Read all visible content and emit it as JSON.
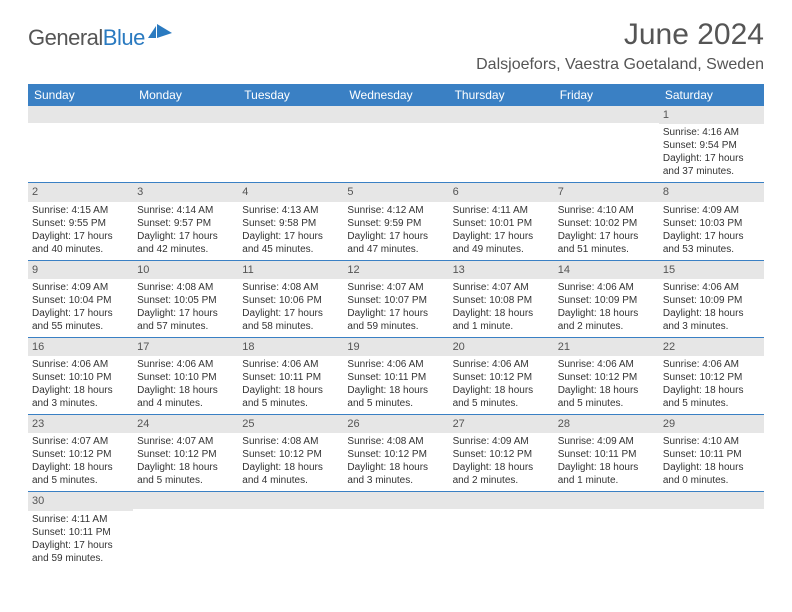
{
  "logo": {
    "part1": "General",
    "part2": "Blue"
  },
  "title": "June 2024",
  "location": "Dalsjoefors, Vaestra Goetaland, Sweden",
  "colors": {
    "header_bg": "#3a80c4",
    "header_text": "#ffffff",
    "daynum_bg": "#e6e6e6",
    "row_border": "#3a80c4",
    "body_text": "#333333",
    "title_text": "#555555",
    "logo_gray": "#555555",
    "logo_blue": "#2a7ac0"
  },
  "weekdays": [
    "Sunday",
    "Monday",
    "Tuesday",
    "Wednesday",
    "Thursday",
    "Friday",
    "Saturday"
  ],
  "weeks": [
    [
      {
        "empty": true
      },
      {
        "empty": true
      },
      {
        "empty": true
      },
      {
        "empty": true
      },
      {
        "empty": true
      },
      {
        "empty": true
      },
      {
        "day": "1",
        "sunrise": "Sunrise: 4:16 AM",
        "sunset": "Sunset: 9:54 PM",
        "daylight": "Daylight: 17 hours and 37 minutes."
      }
    ],
    [
      {
        "day": "2",
        "sunrise": "Sunrise: 4:15 AM",
        "sunset": "Sunset: 9:55 PM",
        "daylight": "Daylight: 17 hours and 40 minutes."
      },
      {
        "day": "3",
        "sunrise": "Sunrise: 4:14 AM",
        "sunset": "Sunset: 9:57 PM",
        "daylight": "Daylight: 17 hours and 42 minutes."
      },
      {
        "day": "4",
        "sunrise": "Sunrise: 4:13 AM",
        "sunset": "Sunset: 9:58 PM",
        "daylight": "Daylight: 17 hours and 45 minutes."
      },
      {
        "day": "5",
        "sunrise": "Sunrise: 4:12 AM",
        "sunset": "Sunset: 9:59 PM",
        "daylight": "Daylight: 17 hours and 47 minutes."
      },
      {
        "day": "6",
        "sunrise": "Sunrise: 4:11 AM",
        "sunset": "Sunset: 10:01 PM",
        "daylight": "Daylight: 17 hours and 49 minutes."
      },
      {
        "day": "7",
        "sunrise": "Sunrise: 4:10 AM",
        "sunset": "Sunset: 10:02 PM",
        "daylight": "Daylight: 17 hours and 51 minutes."
      },
      {
        "day": "8",
        "sunrise": "Sunrise: 4:09 AM",
        "sunset": "Sunset: 10:03 PM",
        "daylight": "Daylight: 17 hours and 53 minutes."
      }
    ],
    [
      {
        "day": "9",
        "sunrise": "Sunrise: 4:09 AM",
        "sunset": "Sunset: 10:04 PM",
        "daylight": "Daylight: 17 hours and 55 minutes."
      },
      {
        "day": "10",
        "sunrise": "Sunrise: 4:08 AM",
        "sunset": "Sunset: 10:05 PM",
        "daylight": "Daylight: 17 hours and 57 minutes."
      },
      {
        "day": "11",
        "sunrise": "Sunrise: 4:08 AM",
        "sunset": "Sunset: 10:06 PM",
        "daylight": "Daylight: 17 hours and 58 minutes."
      },
      {
        "day": "12",
        "sunrise": "Sunrise: 4:07 AM",
        "sunset": "Sunset: 10:07 PM",
        "daylight": "Daylight: 17 hours and 59 minutes."
      },
      {
        "day": "13",
        "sunrise": "Sunrise: 4:07 AM",
        "sunset": "Sunset: 10:08 PM",
        "daylight": "Daylight: 18 hours and 1 minute."
      },
      {
        "day": "14",
        "sunrise": "Sunrise: 4:06 AM",
        "sunset": "Sunset: 10:09 PM",
        "daylight": "Daylight: 18 hours and 2 minutes."
      },
      {
        "day": "15",
        "sunrise": "Sunrise: 4:06 AM",
        "sunset": "Sunset: 10:09 PM",
        "daylight": "Daylight: 18 hours and 3 minutes."
      }
    ],
    [
      {
        "day": "16",
        "sunrise": "Sunrise: 4:06 AM",
        "sunset": "Sunset: 10:10 PM",
        "daylight": "Daylight: 18 hours and 3 minutes."
      },
      {
        "day": "17",
        "sunrise": "Sunrise: 4:06 AM",
        "sunset": "Sunset: 10:10 PM",
        "daylight": "Daylight: 18 hours and 4 minutes."
      },
      {
        "day": "18",
        "sunrise": "Sunrise: 4:06 AM",
        "sunset": "Sunset: 10:11 PM",
        "daylight": "Daylight: 18 hours and 5 minutes."
      },
      {
        "day": "19",
        "sunrise": "Sunrise: 4:06 AM",
        "sunset": "Sunset: 10:11 PM",
        "daylight": "Daylight: 18 hours and 5 minutes."
      },
      {
        "day": "20",
        "sunrise": "Sunrise: 4:06 AM",
        "sunset": "Sunset: 10:12 PM",
        "daylight": "Daylight: 18 hours and 5 minutes."
      },
      {
        "day": "21",
        "sunrise": "Sunrise: 4:06 AM",
        "sunset": "Sunset: 10:12 PM",
        "daylight": "Daylight: 18 hours and 5 minutes."
      },
      {
        "day": "22",
        "sunrise": "Sunrise: 4:06 AM",
        "sunset": "Sunset: 10:12 PM",
        "daylight": "Daylight: 18 hours and 5 minutes."
      }
    ],
    [
      {
        "day": "23",
        "sunrise": "Sunrise: 4:07 AM",
        "sunset": "Sunset: 10:12 PM",
        "daylight": "Daylight: 18 hours and 5 minutes."
      },
      {
        "day": "24",
        "sunrise": "Sunrise: 4:07 AM",
        "sunset": "Sunset: 10:12 PM",
        "daylight": "Daylight: 18 hours and 5 minutes."
      },
      {
        "day": "25",
        "sunrise": "Sunrise: 4:08 AM",
        "sunset": "Sunset: 10:12 PM",
        "daylight": "Daylight: 18 hours and 4 minutes."
      },
      {
        "day": "26",
        "sunrise": "Sunrise: 4:08 AM",
        "sunset": "Sunset: 10:12 PM",
        "daylight": "Daylight: 18 hours and 3 minutes."
      },
      {
        "day": "27",
        "sunrise": "Sunrise: 4:09 AM",
        "sunset": "Sunset: 10:12 PM",
        "daylight": "Daylight: 18 hours and 2 minutes."
      },
      {
        "day": "28",
        "sunrise": "Sunrise: 4:09 AM",
        "sunset": "Sunset: 10:11 PM",
        "daylight": "Daylight: 18 hours and 1 minute."
      },
      {
        "day": "29",
        "sunrise": "Sunrise: 4:10 AM",
        "sunset": "Sunset: 10:11 PM",
        "daylight": "Daylight: 18 hours and 0 minutes."
      }
    ],
    [
      {
        "day": "30",
        "sunrise": "Sunrise: 4:11 AM",
        "sunset": "Sunset: 10:11 PM",
        "daylight": "Daylight: 17 hours and 59 minutes."
      },
      {
        "empty": true
      },
      {
        "empty": true
      },
      {
        "empty": true
      },
      {
        "empty": true
      },
      {
        "empty": true
      },
      {
        "empty": true
      }
    ]
  ]
}
